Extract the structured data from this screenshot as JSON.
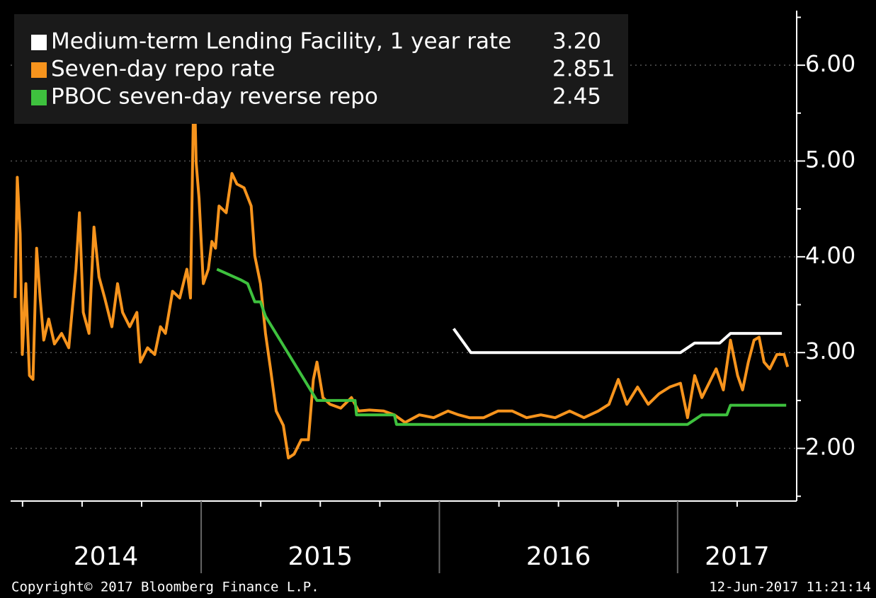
{
  "chart_data": {
    "type": "line",
    "footer_left": "Copyright© 2017 Bloomberg Finance L.P.",
    "footer_right": "12-Jun-2017 11:21:14",
    "xlim": [
      2014.2,
      2017.5
    ],
    "xticks": [
      2014.25,
      2014.5,
      2014.75,
      2015,
      2015.25,
      2015.5,
      2015.75,
      2016,
      2016.25,
      2016.5,
      2016.75,
      2017,
      2017.25
    ],
    "x_labels": [
      "2014",
      "2015",
      "2016",
      "2017"
    ],
    "ylim": [
      1.45,
      6.57
    ],
    "yticks": [
      {
        "value": 2,
        "label": "2.00"
      },
      {
        "value": 3,
        "label": "3.00"
      },
      {
        "value": 4,
        "label": "4.00"
      },
      {
        "value": 5,
        "label": "5.00"
      },
      {
        "value": 6,
        "label": "6.00"
      }
    ],
    "yminorticks": [
      1.5,
      2.5,
      3.5,
      4.5,
      5.5,
      6.5
    ],
    "grid": true,
    "legend": "top-left",
    "series": [
      {
        "name": "Medium-term Lending Facility, 1 year rate",
        "legend_value": "3.20",
        "color": "#ffffff",
        "x": [
          2016.06,
          2016.132,
          2017.012,
          2017.072,
          2017.177,
          2017.222,
          2017.438
        ],
        "values": [
          3.25,
          3.0,
          3.0,
          3.1,
          3.1,
          3.2,
          3.2
        ]
      },
      {
        "name": "Seven-day repo rate",
        "legend_value": "2.851",
        "color": "#f7941d",
        "x": [
          2014.219,
          2014.228,
          2014.24,
          2014.249,
          2014.264,
          2014.279,
          2014.294,
          2014.309,
          2014.324,
          2014.339,
          2014.36,
          2014.384,
          2014.414,
          2014.444,
          2014.474,
          2014.489,
          2014.505,
          2014.529,
          2014.55,
          2014.571,
          2014.595,
          2014.625,
          2014.649,
          2014.67,
          2014.7,
          2014.73,
          2014.745,
          2014.775,
          2014.805,
          2014.829,
          2014.85,
          2014.88,
          2014.91,
          2014.94,
          2014.955,
          2014.97,
          2014.979,
          2014.991,
          2015.009,
          2015.03,
          2015.045,
          2015.06,
          2015.075,
          2015.105,
          2015.129,
          2015.15,
          2015.18,
          2015.21,
          2015.225,
          2015.249,
          2015.27,
          2015.291,
          2015.315,
          2015.345,
          2015.366,
          2015.39,
          2015.42,
          2015.45,
          2015.471,
          2015.486,
          2015.511,
          2015.541,
          2015.586,
          2015.631,
          2015.661,
          2015.706,
          2015.766,
          2015.811,
          2015.856,
          2015.916,
          2015.976,
          2016.036,
          2016.081,
          2016.126,
          2016.186,
          2016.246,
          2016.306,
          2016.366,
          2016.426,
          2016.486,
          2016.547,
          2016.607,
          2016.667,
          2016.712,
          2016.751,
          2016.787,
          2016.832,
          2016.877,
          2016.922,
          2016.967,
          2017.012,
          2017.042,
          2017.072,
          2017.102,
          2017.132,
          2017.162,
          2017.192,
          2017.222,
          2017.252,
          2017.273,
          2017.297,
          2017.321,
          2017.342,
          2017.363,
          2017.387,
          2017.417,
          2017.447,
          2017.462
        ],
        "values": [
          3.57,
          4.83,
          4.24,
          2.98,
          3.72,
          2.76,
          2.72,
          4.09,
          3.57,
          3.13,
          3.35,
          3.09,
          3.2,
          3.05,
          3.87,
          4.46,
          3.42,
          3.2,
          4.31,
          3.79,
          3.57,
          3.27,
          3.72,
          3.42,
          3.27,
          3.42,
          2.9,
          3.05,
          2.98,
          3.27,
          3.2,
          3.64,
          3.57,
          3.87,
          3.57,
          5.94,
          4.98,
          4.61,
          3.72,
          3.87,
          4.16,
          4.09,
          4.53,
          4.46,
          4.87,
          4.76,
          4.72,
          4.53,
          4.01,
          3.72,
          3.2,
          2.83,
          2.39,
          2.24,
          1.9,
          1.94,
          2.09,
          2.09,
          2.72,
          2.9,
          2.53,
          2.46,
          2.42,
          2.53,
          2.39,
          2.4,
          2.39,
          2.35,
          2.27,
          2.35,
          2.32,
          2.39,
          2.35,
          2.32,
          2.32,
          2.39,
          2.39,
          2.32,
          2.35,
          2.32,
          2.39,
          2.32,
          2.39,
          2.46,
          2.72,
          2.46,
          2.64,
          2.46,
          2.57,
          2.64,
          2.68,
          2.32,
          2.76,
          2.53,
          2.68,
          2.83,
          2.61,
          3.13,
          2.76,
          2.61,
          2.9,
          3.13,
          3.16,
          2.9,
          2.83,
          2.98,
          2.98,
          2.851
        ]
      },
      {
        "name": "PBOC seven-day reverse repo",
        "legend_value": "2.45",
        "color": "#3ec13e",
        "x": [
          2015.066,
          2015.165,
          2015.195,
          2015.225,
          2015.249,
          2015.27,
          2015.486,
          2015.646,
          2015.652,
          2015.811,
          2015.82,
          2017.042,
          2017.102,
          2017.207,
          2017.222,
          2017.456
        ],
        "values": [
          3.87,
          3.76,
          3.72,
          3.53,
          3.53,
          3.38,
          2.5,
          2.5,
          2.35,
          2.35,
          2.25,
          2.25,
          2.35,
          2.35,
          2.45,
          2.45
        ]
      }
    ]
  }
}
